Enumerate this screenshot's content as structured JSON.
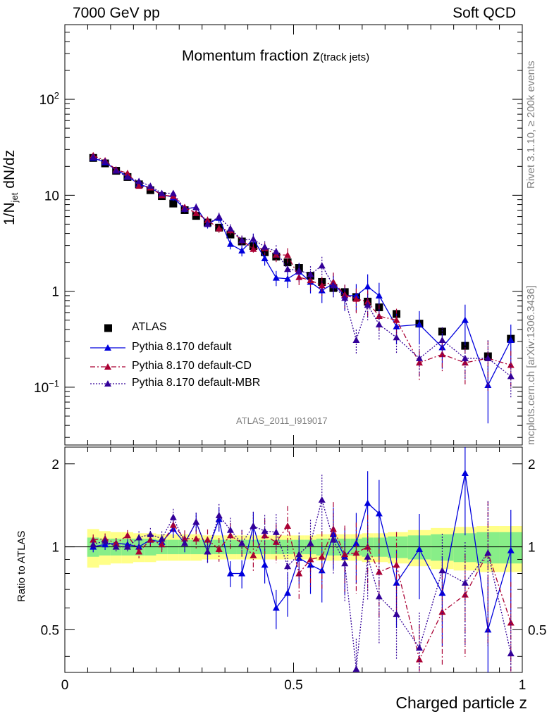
{
  "header": {
    "left": "7000 GeV pp",
    "right": "Soft QCD"
  },
  "title": {
    "main": "Momentum fraction z",
    "sub": "(track jets)"
  },
  "ylabel": {
    "pre": "1/N",
    "sub": "jet",
    "post": " dN/dz"
  },
  "ratio_ylabel": "Ratio to ATLAS",
  "xlabel": "Charged particle z",
  "side_text": {
    "rivet": "Rivet 3.1.10, ≥ 200k events",
    "mcplots": "mcplots.cern.ch [arXiv:1306.3436]"
  },
  "analysis_id": "ATLAS_2011_I919017",
  "legend": [
    {
      "label": "ATLAS",
      "color": "#000000",
      "marker": "square",
      "dash": "none"
    },
    {
      "label": "Pythia 8.170 default",
      "color": "#0000dd",
      "marker": "triangle",
      "dash": "solid"
    },
    {
      "label": "Pythia 8.170 default-CD",
      "color": "#aa0033",
      "marker": "triangle",
      "dash": "dashdot"
    },
    {
      "label": "Pythia 8.170 default-MBR",
      "color": "#330099",
      "marker": "triangle",
      "dash": "dotted"
    }
  ],
  "chart_data": {
    "type": "line",
    "title": "Momentum fraction z(track jets)",
    "xlabel": "Charged particle z",
    "ylabel": "1/N_jet dN/dz",
    "xlim": [
      0,
      1
    ],
    "ylim": [
      0.025,
      600
    ],
    "yscale": "log",
    "ratio_ylim": [
      0.35,
      2.3
    ],
    "x_ticks": [
      "0",
      "0.5",
      "1"
    ],
    "y_ticks": [
      "10^-1",
      "1",
      "10",
      "10^2"
    ],
    "ratio_ticks": [
      "0.5",
      "1",
      "2"
    ],
    "x": [
      0.062,
      0.088,
      0.112,
      0.137,
      0.162,
      0.187,
      0.212,
      0.237,
      0.262,
      0.287,
      0.312,
      0.337,
      0.362,
      0.387,
      0.412,
      0.437,
      0.462,
      0.487,
      0.512,
      0.537,
      0.562,
      0.587,
      0.612,
      0.637,
      0.662,
      0.687,
      0.725,
      0.775,
      0.825,
      0.875,
      0.925,
      0.975
    ],
    "series": [
      {
        "name": "ATLAS",
        "values": [
          24.5,
          21.5,
          18.0,
          15.5,
          13.0,
          11.3,
          9.8,
          8.2,
          7.0,
          6.1,
          5.2,
          4.6,
          3.9,
          3.3,
          2.95,
          2.55,
          2.3,
          2.0,
          1.75,
          1.45,
          1.25,
          1.08,
          0.98,
          0.87,
          0.78,
          0.68,
          0.58,
          0.46,
          0.38,
          0.27,
          0.21,
          0.32
        ]
      },
      {
        "name": "Pythia 8.170 default",
        "values": [
          24.5,
          22.0,
          18.5,
          15.8,
          13.0,
          12.0,
          10.2,
          9.5,
          7.2,
          7.5,
          5.0,
          5.8,
          3.1,
          2.65,
          3.5,
          2.2,
          1.38,
          1.35,
          1.6,
          1.25,
          1.02,
          1.2,
          0.9,
          0.9,
          1.12,
          0.9,
          0.43,
          0.45,
          0.26,
          0.5,
          0.105,
          0.31
        ]
      },
      {
        "name": "Pythia 8.170 default-CD",
        "values": [
          26.0,
          23.0,
          18.5,
          17.0,
          12.5,
          12.0,
          10.0,
          9.8,
          7.5,
          6.5,
          5.5,
          4.5,
          4.3,
          3.4,
          2.75,
          2.8,
          2.4,
          2.38,
          1.4,
          1.3,
          1.15,
          1.25,
          0.92,
          0.83,
          0.78,
          0.55,
          0.5,
          0.18,
          0.22,
          0.18,
          0.2,
          0.17
        ]
      },
      {
        "name": "Pythia 8.170 default-MBR",
        "values": [
          25.0,
          22.5,
          18.0,
          15.5,
          14.0,
          12.5,
          10.5,
          10.5,
          7.2,
          7.5,
          5.0,
          6.0,
          4.5,
          3.4,
          3.5,
          2.9,
          2.6,
          1.7,
          1.65,
          1.5,
          1.85,
          1.15,
          0.85,
          0.31,
          0.72,
          0.45,
          0.33,
          0.2,
          0.31,
          0.2,
          0.2,
          0.13
        ]
      }
    ],
    "ratio_series": [
      {
        "name": "Pythia 8.170 default",
        "values": [
          1.0,
          1.02,
          1.03,
          1.02,
          1.0,
          1.06,
          1.04,
          1.16,
          1.03,
          1.23,
          0.96,
          1.26,
          0.8,
          0.8,
          1.19,
          0.86,
          0.6,
          0.68,
          0.91,
          0.86,
          0.82,
          1.11,
          0.92,
          1.03,
          1.44,
          1.32,
          0.74,
          0.98,
          0.68,
          1.85,
          0.5,
          0.97
        ]
      },
      {
        "name": "Pythia 8.170 default-CD",
        "values": [
          1.06,
          1.07,
          1.03,
          1.1,
          0.96,
          1.06,
          1.02,
          1.2,
          1.07,
          1.07,
          1.06,
          0.98,
          1.1,
          1.03,
          0.93,
          1.1,
          1.04,
          1.19,
          0.8,
          0.9,
          0.92,
          1.16,
          0.94,
          0.95,
          1.0,
          0.81,
          0.86,
          0.39,
          0.58,
          0.67,
          0.95,
          0.53
        ]
      },
      {
        "name": "Pythia 8.170 default-MBR",
        "values": [
          1.02,
          1.05,
          1.0,
          1.0,
          1.08,
          1.11,
          1.07,
          1.28,
          1.03,
          1.23,
          0.96,
          1.3,
          1.15,
          1.03,
          1.19,
          1.14,
          1.13,
          0.85,
          0.94,
          1.03,
          1.48,
          1.06,
          0.87,
          0.36,
          0.92,
          0.66,
          0.57,
          0.43,
          0.82,
          0.74,
          0.95,
          0.41
        ]
      }
    ],
    "band_inner": [
      0.08,
      0.07,
      0.07,
      0.07,
      0.07,
      0.07,
      0.06,
      0.06,
      0.06,
      0.06,
      0.06,
      0.06,
      0.06,
      0.06,
      0.06,
      0.06,
      0.06,
      0.06,
      0.06,
      0.06,
      0.07,
      0.07,
      0.07,
      0.07,
      0.08,
      0.08,
      0.09,
      0.1,
      0.11,
      0.12,
      0.13,
      0.13
    ],
    "band_outer": [
      0.16,
      0.14,
      0.13,
      0.13,
      0.12,
      0.12,
      0.11,
      0.11,
      0.11,
      0.11,
      0.1,
      0.1,
      0.1,
      0.1,
      0.1,
      0.1,
      0.1,
      0.1,
      0.1,
      0.1,
      0.11,
      0.11,
      0.11,
      0.11,
      0.12,
      0.12,
      0.13,
      0.15,
      0.17,
      0.18,
      0.19,
      0.19
    ]
  }
}
